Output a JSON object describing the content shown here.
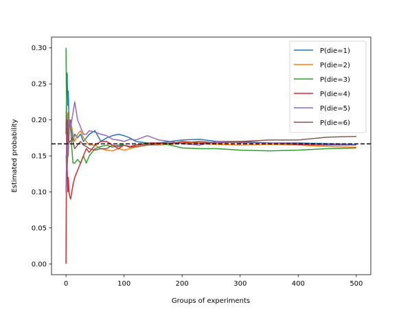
{
  "chart_data": {
    "type": "line",
    "title": "",
    "xlabel": "Groups of experiments",
    "ylabel": "Estimated probability",
    "xlim": [
      -25,
      525
    ],
    "ylim": [
      -0.015,
      0.315
    ],
    "x_ticks": [
      0,
      100,
      200,
      300,
      400,
      500
    ],
    "x_tick_labels": [
      "0",
      "100",
      "200",
      "300",
      "400",
      "500"
    ],
    "y_ticks": [
      0.0,
      0.05,
      0.1,
      0.15,
      0.2,
      0.25,
      0.3
    ],
    "y_tick_labels": [
      "0.00",
      "0.05",
      "0.10",
      "0.15",
      "0.20",
      "0.25",
      "0.30"
    ],
    "grid": false,
    "legend_position": "top-right",
    "reference_line": {
      "y": 0.1667,
      "style": "dashed",
      "color": "#000000"
    },
    "series": [
      {
        "name": "P(die=1)",
        "color": "#1f77b4",
        "x": [
          0,
          1,
          2,
          3,
          4,
          5,
          6,
          8,
          10,
          12,
          15,
          20,
          25,
          30,
          35,
          40,
          50,
          60,
          70,
          80,
          90,
          100,
          110,
          120,
          140,
          160,
          180,
          200,
          230,
          260,
          300,
          350,
          400,
          450,
          500
        ],
        "y": [
          0.18,
          0.25,
          0.265,
          0.22,
          0.24,
          0.2,
          0.19,
          0.2,
          0.185,
          0.17,
          0.18,
          0.175,
          0.18,
          0.17,
          0.175,
          0.18,
          0.185,
          0.17,
          0.175,
          0.178,
          0.18,
          0.178,
          0.175,
          0.17,
          0.168,
          0.168,
          0.17,
          0.172,
          0.173,
          0.17,
          0.17,
          0.168,
          0.168,
          0.167,
          0.166
        ]
      },
      {
        "name": "P(die=2)",
        "color": "#ff7f0e",
        "x": [
          0,
          1,
          2,
          3,
          4,
          5,
          6,
          8,
          10,
          12,
          15,
          20,
          25,
          30,
          35,
          40,
          50,
          60,
          70,
          80,
          90,
          100,
          110,
          120,
          140,
          160,
          180,
          200,
          230,
          260,
          300,
          350,
          400,
          450,
          500
        ],
        "y": [
          0.15,
          0.13,
          0.2,
          0.21,
          0.19,
          0.2,
          0.2,
          0.185,
          0.19,
          0.18,
          0.17,
          0.18,
          0.185,
          0.175,
          0.17,
          0.165,
          0.165,
          0.16,
          0.158,
          0.157,
          0.16,
          0.158,
          0.16,
          0.162,
          0.165,
          0.165,
          0.166,
          0.168,
          0.167,
          0.166,
          0.165,
          0.166,
          0.165,
          0.163,
          0.162
        ]
      },
      {
        "name": "P(die=3)",
        "color": "#2ca02c",
        "x": [
          0,
          1,
          2,
          3,
          4,
          5,
          6,
          8,
          10,
          12,
          15,
          20,
          25,
          30,
          35,
          40,
          50,
          60,
          70,
          80,
          90,
          100,
          110,
          120,
          140,
          160,
          180,
          200,
          230,
          260,
          300,
          350,
          400,
          450,
          500
        ],
        "y": [
          0.3,
          0.2,
          0.135,
          0.15,
          0.18,
          0.17,
          0.2,
          0.19,
          0.16,
          0.14,
          0.14,
          0.145,
          0.14,
          0.15,
          0.14,
          0.15,
          0.16,
          0.163,
          0.165,
          0.162,
          0.165,
          0.165,
          0.162,
          0.165,
          0.168,
          0.168,
          0.165,
          0.161,
          0.16,
          0.16,
          0.158,
          0.157,
          0.158,
          0.16,
          0.161
        ]
      },
      {
        "name": "P(die=4)",
        "color": "#d62728",
        "x": [
          0,
          1,
          2,
          3,
          4,
          5,
          6,
          8,
          10,
          12,
          15,
          20,
          25,
          30,
          35,
          40,
          50,
          60,
          70,
          80,
          90,
          100,
          110,
          120,
          140,
          160,
          180,
          200,
          230,
          260,
          300,
          350,
          400,
          450,
          500
        ],
        "y": [
          0.0,
          0.2,
          0.133,
          0.1,
          0.12,
          0.1,
          0.095,
          0.09,
          0.1,
          0.11,
          0.12,
          0.13,
          0.14,
          0.15,
          0.16,
          0.155,
          0.165,
          0.17,
          0.17,
          0.165,
          0.16,
          0.165,
          0.163,
          0.165,
          0.167,
          0.168,
          0.167,
          0.17,
          0.168,
          0.168,
          0.169,
          0.168,
          0.166,
          0.165,
          0.165
        ]
      },
      {
        "name": "P(die=5)",
        "color": "#9467bd",
        "x": [
          0,
          1,
          2,
          3,
          4,
          5,
          6,
          8,
          10,
          12,
          15,
          20,
          25,
          30,
          35,
          40,
          50,
          60,
          70,
          80,
          90,
          100,
          110,
          120,
          140,
          160,
          180,
          200,
          230,
          260,
          300,
          350,
          400,
          450,
          500
        ],
        "y": [
          0.1,
          0.15,
          0.2,
          0.17,
          0.15,
          0.18,
          0.2,
          0.19,
          0.2,
          0.21,
          0.225,
          0.2,
          0.19,
          0.18,
          0.18,
          0.185,
          0.183,
          0.18,
          0.178,
          0.173,
          0.172,
          0.17,
          0.173,
          0.172,
          0.178,
          0.172,
          0.17,
          0.167,
          0.165,
          0.17,
          0.168,
          0.168,
          0.167,
          0.166,
          0.165
        ]
      },
      {
        "name": "P(die=6)",
        "color": "#8c564b",
        "x": [
          0,
          1,
          2,
          3,
          4,
          5,
          6,
          8,
          10,
          12,
          15,
          20,
          25,
          30,
          35,
          40,
          50,
          60,
          70,
          80,
          90,
          100,
          110,
          120,
          140,
          160,
          180,
          200,
          230,
          260,
          300,
          350,
          400,
          450,
          500
        ],
        "y": [
          0.2,
          0.2,
          0.167,
          0.2,
          0.18,
          0.167,
          0.17,
          0.17,
          0.175,
          0.17,
          0.16,
          0.165,
          0.17,
          0.165,
          0.163,
          0.16,
          0.158,
          0.16,
          0.16,
          0.165,
          0.163,
          0.165,
          0.162,
          0.163,
          0.165,
          0.167,
          0.168,
          0.168,
          0.17,
          0.168,
          0.17,
          0.172,
          0.172,
          0.176,
          0.177
        ]
      }
    ]
  }
}
